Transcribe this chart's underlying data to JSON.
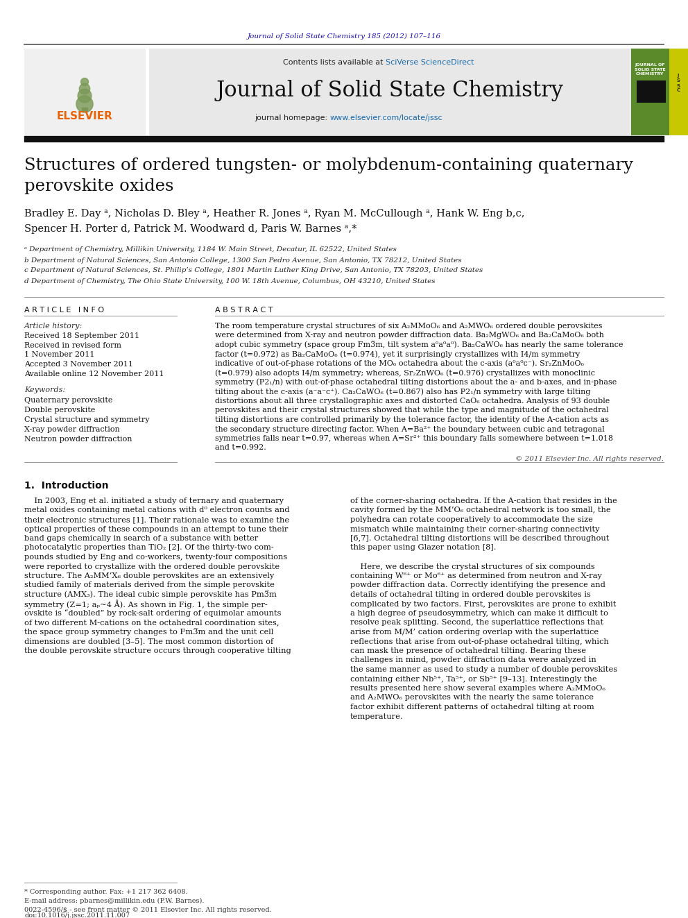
{
  "page_bg": "#ffffff",
  "top_citation": "Journal of Solid State Chemistry 185 (2012) 107–116",
  "top_citation_color": "#1a0dab",
  "journal_title": "Journal of Solid State Chemistry",
  "header_bg": "#e8e8e8",
  "contents_text": "Contents lists available at ",
  "sciversedirect": "SciVerse ScienceDirect",
  "journal_homepage_text": "journal homepage: ",
  "journal_url": "www.elsevier.com/locate/jssc",
  "article_title_line1": "Structures of ordered tungsten- or molybdenum-containing quaternary",
  "article_title_line2": "perovskite oxides",
  "article_info_header": "A R T I C L E   I N F O",
  "abstract_header": "A B S T R A C T",
  "article_history_label": "Article history:",
  "received1": "Received 18 September 2011",
  "received2": "Received in revised form",
  "received2b": "1 November 2011",
  "accepted": "Accepted 3 November 2011",
  "available": "Available online 12 November 2011",
  "keywords_label": "Keywords:",
  "kw1": "Quaternary perovskite",
  "kw2": "Double perovskite",
  "kw3": "Crystal structure and symmetry",
  "kw4": "X-ray powder diffraction",
  "kw5": "Neutron powder diffraction",
  "copyright": "© 2011 Elsevier Inc. All rights reserved.",
  "intro_header": "1.  Introduction",
  "footer_note": "* Corresponding author. Fax: +1 217 362 6408.",
  "footer_email": "E-mail address: pbarnes@millikin.edu (P.W. Barnes).",
  "footer_issn": "0022-4596/$ - see front matter © 2011 Elsevier Inc. All rights reserved.",
  "footer_doi": "doi:10.1016/j.jssc.2011.11.007",
  "elsevier_color": "#e8640a",
  "link_color": "#1a6aab",
  "cover_green": "#5a8a2a",
  "cover_yellow": "#c8c800"
}
